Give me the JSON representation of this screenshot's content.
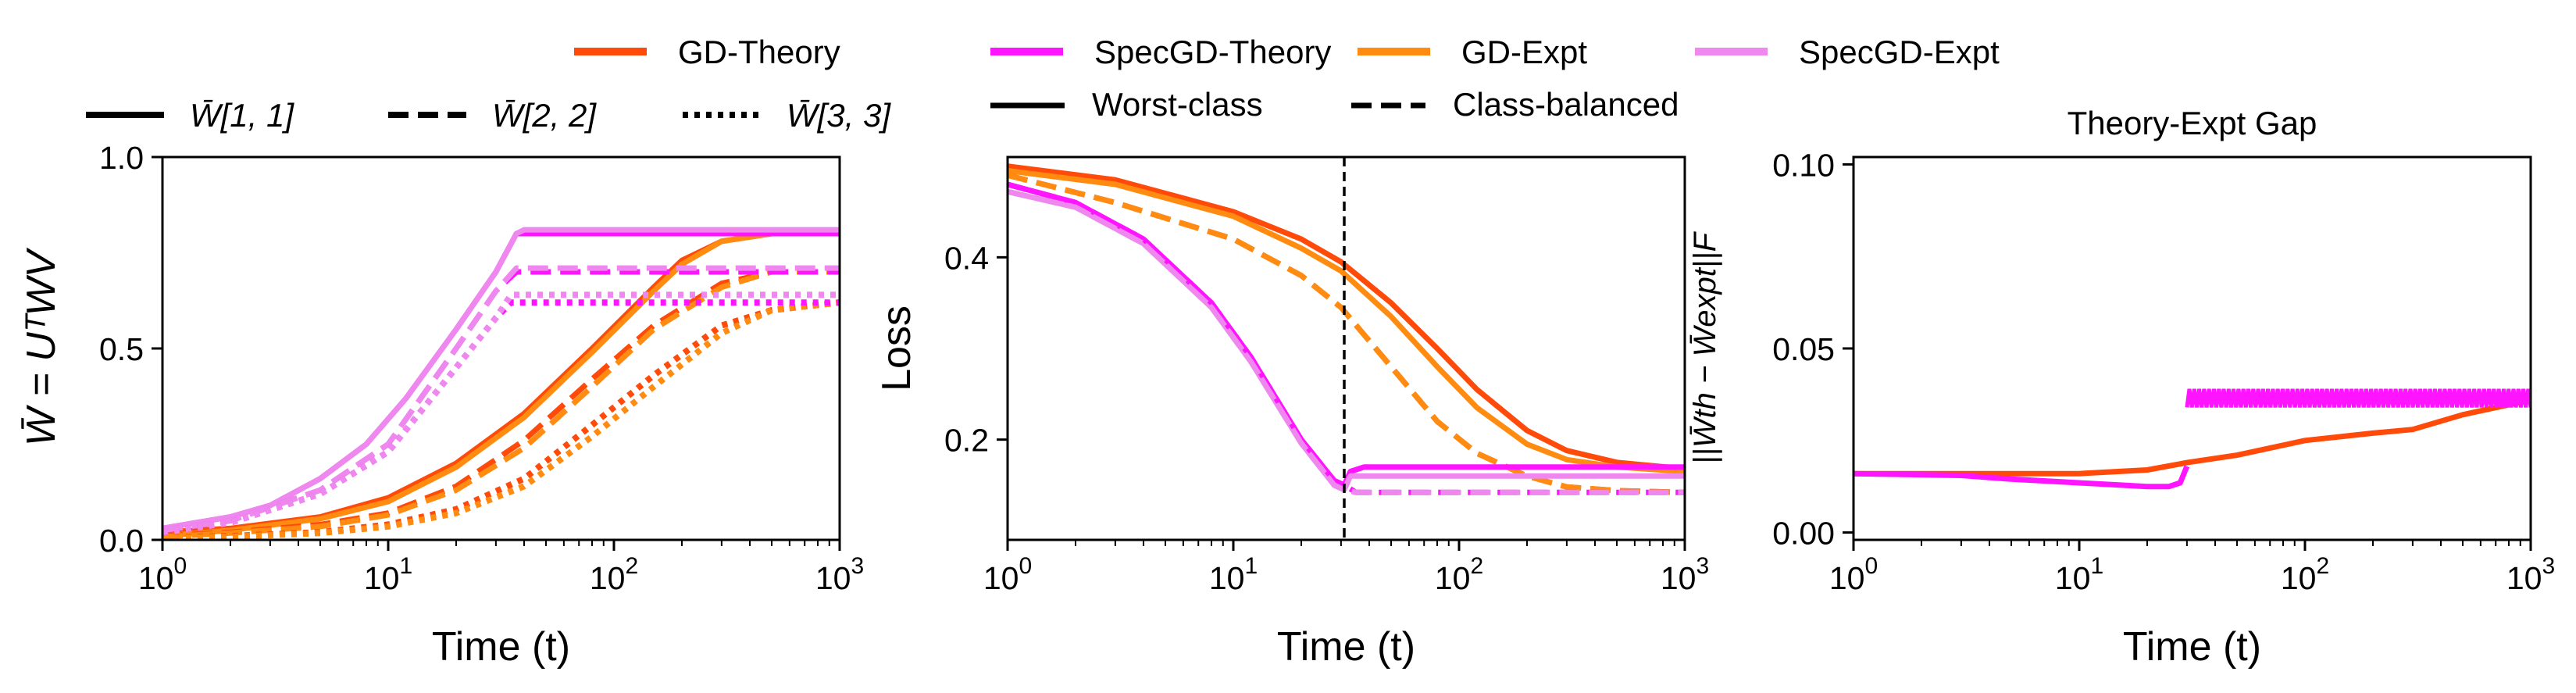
{
  "legends": {
    "top": [
      {
        "label": "GD-Theory",
        "color": "#ff4a0a",
        "dash": "solid"
      },
      {
        "label": "SpecGD-Theory",
        "color": "#ff14ff",
        "dash": "solid"
      },
      {
        "label": "GD-Expt",
        "color": "#ff8c10",
        "dash": "solid"
      },
      {
        "label": "SpecGD-Expt",
        "color": "#ee88ee",
        "dash": "solid"
      }
    ],
    "styles_left": [
      {
        "label": "W̄[1, 1]",
        "dash": "solid"
      },
      {
        "label": "W̄[2, 2]",
        "dash": "dashed"
      },
      {
        "label": "W̄[3, 3]",
        "dash": "dotted"
      }
    ],
    "styles_mid": [
      {
        "label": "Worst-class",
        "dash": "solid"
      },
      {
        "label": "Class-balanced",
        "dash": "dashed"
      }
    ]
  },
  "panels": [
    {
      "ylabel": "W̄ = UᵀWV",
      "xlabel": "Time (t)",
      "title": "",
      "yticks": [
        "0.0",
        "0.5",
        "1.0"
      ],
      "xticks": [
        "10",
        "10",
        "10",
        "10"
      ],
      "xexps": [
        "0",
        "1",
        "2",
        "3"
      ]
    },
    {
      "ylabel": "Loss",
      "xlabel": "Time (t)",
      "title": "",
      "yticks": [
        "0.2",
        "0.4"
      ],
      "xticks": [
        "10",
        "10",
        "10",
        "10"
      ],
      "xexps": [
        "0",
        "1",
        "2",
        "3"
      ]
    },
    {
      "ylabel": "||W̄th − W̄expt||F",
      "xlabel": "Time (t)",
      "title": "Theory-Expt Gap",
      "yticks": [
        "0.00",
        "0.05",
        "0.10"
      ],
      "xticks": [
        "10",
        "10",
        "10",
        "10"
      ],
      "xexps": [
        "0",
        "1",
        "2",
        "3"
      ]
    }
  ],
  "chart_data": [
    {
      "type": "line",
      "xscale": "log",
      "xlim": [
        1,
        1000
      ],
      "ylim": [
        0,
        1.0
      ],
      "xlabel": "Time (t)",
      "ylabel": "W̄ = UᵀWV",
      "series": [
        {
          "name": "GD-Theory W̄[1,1]",
          "color": "#ff4a0a",
          "dash": "solid",
          "x": [
            1,
            2,
            5,
            10,
            20,
            40,
            80,
            150,
            200,
            300,
            500,
            1000
          ],
          "y": [
            0.02,
            0.03,
            0.06,
            0.11,
            0.2,
            0.33,
            0.5,
            0.66,
            0.73,
            0.78,
            0.8,
            0.8
          ]
        },
        {
          "name": "GD-Expt W̄[1,1]",
          "color": "#ff8c10",
          "dash": "solid",
          "x": [
            1,
            2,
            5,
            10,
            20,
            40,
            80,
            150,
            200,
            300,
            500,
            1000
          ],
          "y": [
            0.01,
            0.025,
            0.055,
            0.1,
            0.19,
            0.32,
            0.49,
            0.65,
            0.72,
            0.78,
            0.8,
            0.8
          ]
        },
        {
          "name": "GD-Theory W̄[2,2]",
          "color": "#ff4a0a",
          "dash": "dashed",
          "x": [
            1,
            2,
            5,
            10,
            20,
            40,
            80,
            150,
            300,
            500,
            1000
          ],
          "y": [
            0.01,
            0.02,
            0.04,
            0.07,
            0.14,
            0.26,
            0.42,
            0.56,
            0.67,
            0.7,
            0.7
          ]
        },
        {
          "name": "GD-Expt W̄[2,2]",
          "color": "#ff8c10",
          "dash": "dashed",
          "x": [
            1,
            2,
            5,
            10,
            20,
            40,
            80,
            150,
            300,
            500,
            1000
          ],
          "y": [
            0.008,
            0.018,
            0.035,
            0.065,
            0.13,
            0.24,
            0.4,
            0.55,
            0.66,
            0.7,
            0.7
          ]
        },
        {
          "name": "GD-Theory W̄[3,3]",
          "color": "#ff4a0a",
          "dash": "dotted",
          "x": [
            1,
            2,
            5,
            10,
            20,
            40,
            80,
            150,
            300,
            500,
            1000
          ],
          "y": [
            0.005,
            0.01,
            0.02,
            0.04,
            0.08,
            0.16,
            0.3,
            0.43,
            0.56,
            0.6,
            0.62
          ]
        },
        {
          "name": "GD-Expt W̄[3,3]",
          "color": "#ff8c10",
          "dash": "dotted",
          "x": [
            1,
            2,
            5,
            10,
            20,
            40,
            80,
            150,
            300,
            500,
            1000
          ],
          "y": [
            0.004,
            0.008,
            0.018,
            0.035,
            0.07,
            0.14,
            0.27,
            0.4,
            0.54,
            0.6,
            0.62
          ]
        },
        {
          "name": "SpecGD-Theory W̄[1,1]",
          "color": "#ff14ff",
          "dash": "solid",
          "x": [
            1,
            2,
            3,
            5,
            8,
            12,
            20,
            30,
            37,
            40,
            100,
            1000
          ],
          "y": [
            0.03,
            0.06,
            0.09,
            0.16,
            0.25,
            0.37,
            0.55,
            0.7,
            0.8,
            0.8,
            0.8,
            0.8
          ]
        },
        {
          "name": "SpecGD-Expt W̄[1,1]",
          "color": "#ee88ee",
          "dash": "solid",
          "x": [
            1,
            2,
            3,
            5,
            8,
            12,
            20,
            30,
            37,
            40,
            100,
            1000
          ],
          "y": [
            0.03,
            0.06,
            0.09,
            0.16,
            0.25,
            0.37,
            0.55,
            0.7,
            0.8,
            0.81,
            0.81,
            0.81
          ]
        },
        {
          "name": "SpecGD-Theory W̄[2,2]",
          "color": "#ff14ff",
          "dash": "dashed",
          "x": [
            1,
            2,
            5,
            10,
            20,
            30,
            37,
            100,
            1000
          ],
          "y": [
            0.025,
            0.05,
            0.13,
            0.25,
            0.5,
            0.65,
            0.7,
            0.7,
            0.7
          ]
        },
        {
          "name": "SpecGD-Expt W̄[2,2]",
          "color": "#ee88ee",
          "dash": "dashed",
          "x": [
            1,
            2,
            5,
            10,
            20,
            30,
            37,
            100,
            1000
          ],
          "y": [
            0.025,
            0.05,
            0.13,
            0.25,
            0.5,
            0.65,
            0.71,
            0.71,
            0.71
          ]
        },
        {
          "name": "SpecGD-Theory W̄[3,3]",
          "color": "#ff14ff",
          "dash": "dotted",
          "x": [
            1,
            2,
            5,
            10,
            20,
            30,
            35,
            100,
            1000
          ],
          "y": [
            0.02,
            0.045,
            0.12,
            0.23,
            0.45,
            0.58,
            0.62,
            0.62,
            0.62
          ]
        },
        {
          "name": "SpecGD-Expt W̄[3,3]",
          "color": "#ee88ee",
          "dash": "dotted",
          "x": [
            1,
            2,
            5,
            10,
            20,
            30,
            35,
            100,
            1000
          ],
          "y": [
            0.02,
            0.045,
            0.12,
            0.23,
            0.45,
            0.58,
            0.64,
            0.64,
            0.64
          ]
        }
      ]
    },
    {
      "type": "line",
      "xscale": "log",
      "xlim": [
        1,
        1000
      ],
      "ylim": [
        0.09,
        0.51
      ],
      "xlabel": "Time (t)",
      "ylabel": "Loss",
      "vline": 31,
      "series": [
        {
          "name": "GD-Theory Worst-class",
          "color": "#ff4a0a",
          "dash": "solid",
          "x": [
            1,
            3,
            10,
            20,
            30,
            50,
            80,
            120,
            200,
            300,
            500,
            1000
          ],
          "y": [
            0.5,
            0.485,
            0.45,
            0.42,
            0.395,
            0.35,
            0.3,
            0.255,
            0.21,
            0.188,
            0.175,
            0.168
          ]
        },
        {
          "name": "GD-Expt Worst-class",
          "color": "#ff8c10",
          "dash": "solid",
          "x": [
            1,
            3,
            10,
            20,
            30,
            50,
            80,
            120,
            200,
            300,
            500,
            1000
          ],
          "y": [
            0.495,
            0.48,
            0.445,
            0.41,
            0.385,
            0.335,
            0.28,
            0.235,
            0.195,
            0.178,
            0.17,
            0.165
          ]
        },
        {
          "name": "GD-Theory Class-balanced",
          "color": "#ff4a0a",
          "dash": "dashed",
          "x": [
            1,
            3,
            10,
            20,
            30,
            50,
            80,
            120,
            200,
            300,
            500,
            1000
          ],
          "y": [
            0.49,
            0.46,
            0.42,
            0.38,
            0.345,
            0.28,
            0.22,
            0.185,
            0.16,
            0.148,
            0.144,
            0.142
          ]
        },
        {
          "name": "GD-Expt Class-balanced",
          "color": "#ff8c10",
          "dash": "dashed",
          "x": [
            1,
            3,
            10,
            20,
            30,
            50,
            80,
            120,
            200,
            300,
            500,
            1000
          ],
          "y": [
            0.49,
            0.46,
            0.42,
            0.38,
            0.345,
            0.28,
            0.22,
            0.185,
            0.16,
            0.148,
            0.144,
            0.142
          ]
        },
        {
          "name": "SpecGD-Theory Worst-class",
          "color": "#ff14ff",
          "dash": "solid",
          "x": [
            1,
            2,
            4,
            8,
            12,
            20,
            28,
            31,
            33,
            38,
            100,
            1000
          ],
          "y": [
            0.48,
            0.46,
            0.42,
            0.35,
            0.29,
            0.2,
            0.155,
            0.15,
            0.165,
            0.17,
            0.17,
            0.17
          ]
        },
        {
          "name": "SpecGD-Expt Worst-class",
          "color": "#ee88ee",
          "dash": "solid",
          "x": [
            1,
            2,
            4,
            8,
            12,
            20,
            28,
            31,
            33,
            38,
            100,
            1000
          ],
          "y": [
            0.472,
            0.455,
            0.415,
            0.345,
            0.285,
            0.196,
            0.15,
            0.145,
            0.16,
            0.16,
            0.16,
            0.16
          ]
        },
        {
          "name": "SpecGD-Theory Class-balanced",
          "color": "#ff14ff",
          "dash": "dashed",
          "x": [
            1,
            2,
            4,
            8,
            12,
            20,
            28,
            31,
            35,
            100,
            1000
          ],
          "y": [
            0.48,
            0.46,
            0.42,
            0.35,
            0.29,
            0.2,
            0.155,
            0.15,
            0.142,
            0.142,
            0.142
          ]
        },
        {
          "name": "SpecGD-Expt Class-balanced",
          "color": "#ee88ee",
          "dash": "dashed",
          "x": [
            1,
            2,
            4,
            8,
            12,
            20,
            28,
            31,
            35,
            100,
            1000
          ],
          "y": [
            0.472,
            0.455,
            0.415,
            0.345,
            0.285,
            0.196,
            0.15,
            0.145,
            0.142,
            0.142,
            0.142
          ]
        }
      ]
    },
    {
      "type": "line",
      "xscale": "log",
      "xlim": [
        1,
        1000
      ],
      "ylim": [
        -0.002,
        0.102
      ],
      "xlabel": "Time (t)",
      "ylabel": "||W̄th − W̄expt||F",
      "title": "Theory-Expt Gap",
      "series": [
        {
          "name": "GD",
          "color": "#ff4a0a",
          "dash": "solid",
          "x": [
            1,
            3,
            10,
            20,
            30,
            50,
            100,
            200,
            300,
            500,
            1000
          ],
          "y": [
            0.016,
            0.016,
            0.016,
            0.017,
            0.019,
            0.021,
            0.025,
            0.027,
            0.028,
            0.032,
            0.036
          ]
        },
        {
          "name": "SpecGD",
          "color": "#ff14ff",
          "dash": "solid",
          "x": [
            1,
            3,
            5,
            10,
            20,
            25,
            28,
            30
          ],
          "y": [
            0.016,
            0.0155,
            0.0145,
            0.0135,
            0.0125,
            0.0125,
            0.0135,
            0.018
          ]
        }
      ],
      "oscillation_band": {
        "name": "SpecGD oscillation",
        "color": "#ff14ff",
        "x_start": 30,
        "x_end": 1000,
        "y_low": 0.034,
        "y_high": 0.039
      }
    }
  ]
}
